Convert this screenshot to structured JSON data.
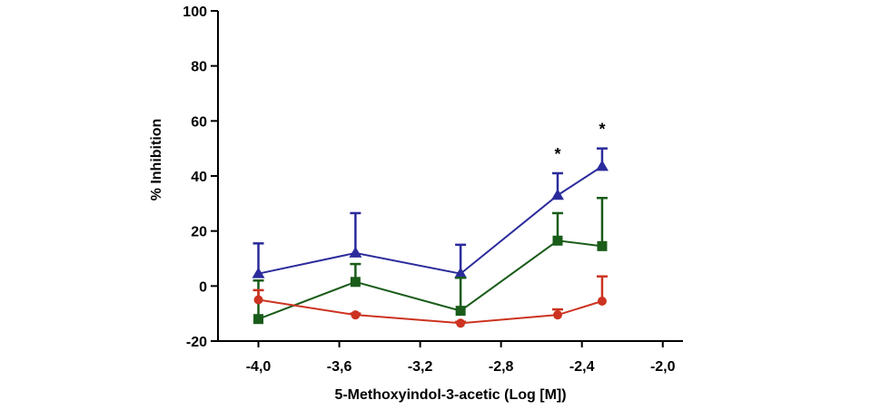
{
  "chart_data": {
    "type": "line",
    "xlabel": "5-Methoxyindol-3-acetic (Log [M])",
    "ylabel": "% Inhibition",
    "xlim": [
      -4.2,
      -1.9
    ],
    "ylim": [
      -20,
      100
    ],
    "x_ticks": [
      -4.0,
      -3.6,
      -3.2,
      -2.8,
      -2.4,
      -2.0
    ],
    "x_tick_labels": [
      "-4,0",
      "-3,6",
      "-3,2",
      "-2,8",
      "-2,4",
      "-2,0"
    ],
    "y_ticks": [
      -20,
      0,
      20,
      40,
      60,
      80,
      100
    ],
    "y_tick_labels": [
      "-20",
      "0",
      "20",
      "40",
      "60",
      "80",
      "100"
    ],
    "grid": false,
    "legend": "none",
    "series": [
      {
        "marker": "triangle",
        "color": "#2b2b9c",
        "x": [
          -4.0,
          -3.52,
          -3.0,
          -2.52,
          -2.3
        ],
        "y": [
          4.5,
          12,
          4.5,
          33,
          43.5
        ],
        "error": [
          11,
          14.5,
          10.5,
          8,
          6.5
        ]
      },
      {
        "marker": "square",
        "color": "#1a5c1a",
        "x": [
          -4.0,
          -3.52,
          -3.0,
          -2.52,
          -2.3
        ],
        "y": [
          -12,
          1.5,
          -9,
          16.5,
          14.5
        ],
        "error": [
          14,
          6.5,
          12,
          10,
          17.5
        ]
      },
      {
        "marker": "circle",
        "color": "#cc3320",
        "x": [
          -4.0,
          -3.52,
          -3.0,
          -2.52,
          -2.3
        ],
        "y": [
          -5,
          -10.5,
          -13.5,
          -10.5,
          -5.5
        ],
        "error": [
          3.5,
          0.5,
          0.5,
          2,
          9
        ]
      }
    ],
    "annotations": [
      {
        "text": "*",
        "x": -2.52,
        "y": 46
      },
      {
        "text": "*",
        "x": -2.3,
        "y": 55
      }
    ]
  }
}
